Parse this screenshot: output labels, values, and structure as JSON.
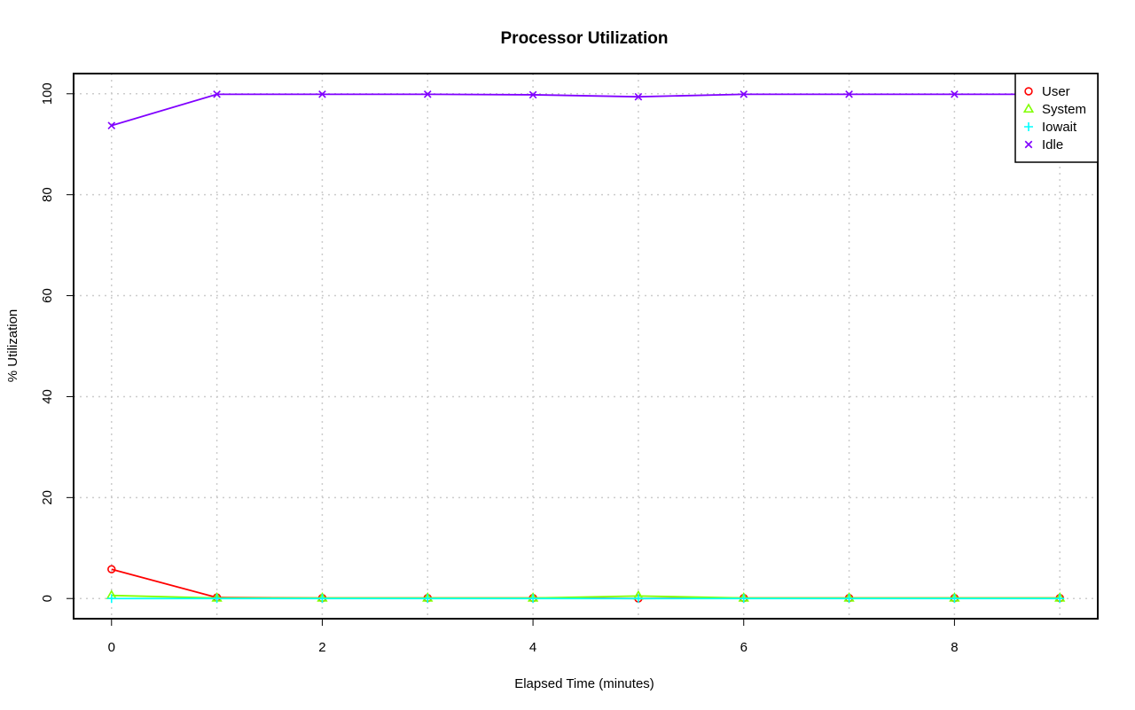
{
  "chart_data": {
    "type": "line",
    "title": "Processor Utilization",
    "xlabel": "Elapsed Time (minutes)",
    "ylabel": "% Utilization",
    "x": [
      0,
      1,
      2,
      3,
      4,
      5,
      6,
      7,
      8,
      9
    ],
    "xlim": [
      -0.36,
      9.36
    ],
    "ylim": [
      -4,
      104
    ],
    "xticks": [
      0,
      2,
      4,
      6,
      8
    ],
    "yticks": [
      0,
      20,
      40,
      60,
      80,
      100
    ],
    "grid": true,
    "legend_position": "top-right",
    "series": [
      {
        "name": "User",
        "color": "#ff0000",
        "marker": "circle",
        "values": [
          5.8,
          0.2,
          0.1,
          0.1,
          0.1,
          0.0,
          0.1,
          0.1,
          0.1,
          0.1
        ]
      },
      {
        "name": "System",
        "color": "#80ff00",
        "marker": "triangle",
        "values": [
          0.6,
          0.1,
          0.1,
          0.1,
          0.1,
          0.5,
          0.1,
          0.1,
          0.1,
          0.1
        ]
      },
      {
        "name": "Iowait",
        "color": "#00ffff",
        "marker": "plus",
        "values": [
          0.0,
          0.0,
          0.0,
          0.0,
          0.0,
          0.0,
          0.0,
          0.0,
          0.0,
          0.0
        ]
      },
      {
        "name": "Idle",
        "color": "#8000ff",
        "marker": "cross",
        "values": [
          93.7,
          99.9,
          99.9,
          99.9,
          99.8,
          99.4,
          99.9,
          99.9,
          99.9,
          99.9
        ]
      }
    ]
  }
}
